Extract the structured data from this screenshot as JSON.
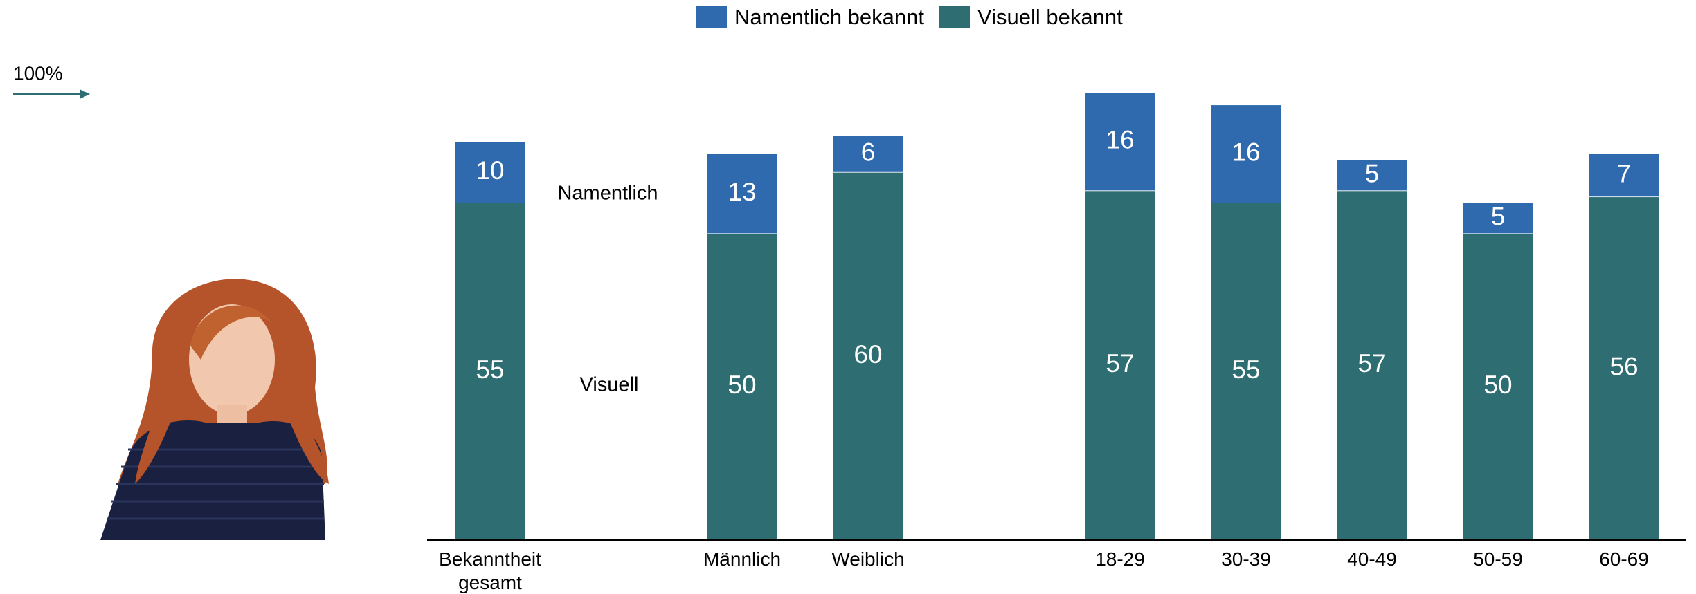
{
  "chart_data": {
    "type": "stacked_bar",
    "categories": [
      "Bekanntheit gesamt",
      null,
      "Männlich",
      "Weiblich",
      null,
      "18-29",
      "30-39",
      "40-49",
      "50-59",
      "60-69"
    ],
    "series": [
      {
        "name": "Visuell bekannt",
        "color": "#2e6e73",
        "values": [
          55,
          null,
          50,
          60,
          null,
          57,
          55,
          57,
          50,
          56
        ]
      },
      {
        "name": "Namentlich bekannt",
        "color": "#2e6aad",
        "values": [
          10,
          null,
          13,
          6,
          null,
          16,
          16,
          5,
          5,
          7
        ]
      }
    ],
    "legend_order": [
      1,
      0
    ],
    "legend": "top",
    "ylim": [
      0,
      88
    ],
    "annotations": [
      "100%",
      "Namentlich",
      "Visuell"
    ]
  }
}
